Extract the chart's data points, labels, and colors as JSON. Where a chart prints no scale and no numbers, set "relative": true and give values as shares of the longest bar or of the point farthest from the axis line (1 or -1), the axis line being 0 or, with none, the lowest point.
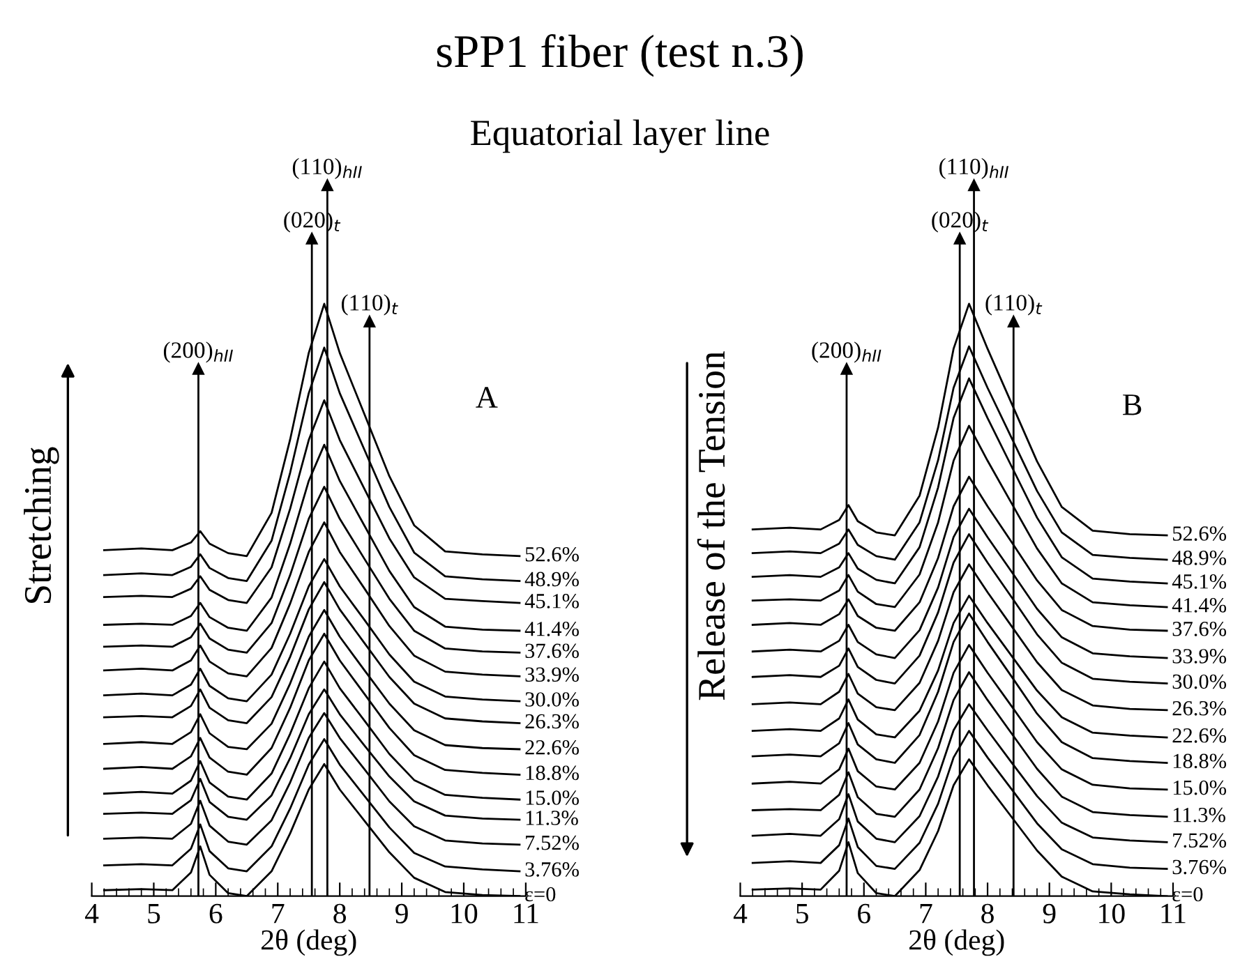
{
  "chart_data": [
    {
      "type": "line",
      "title": "sPP1 fiber (test n.3)",
      "subtitle": "Equatorial layer line",
      "xlabel": "2θ (deg)",
      "ylabel": "Stretching",
      "relative": true,
      "xlim": [
        4,
        11
      ],
      "xticks": [
        4,
        5,
        6,
        7,
        8,
        9,
        10,
        11
      ],
      "tick_labels": "x",
      "grid": false,
      "legend": false,
      "annotations": [
        "A"
      ],
      "x": [
        4.2,
        4.8,
        5.3,
        5.6,
        5.75,
        5.9,
        6.2,
        6.5,
        6.9,
        7.2,
        7.5,
        7.75,
        8.0,
        8.4,
        8.8,
        9.2,
        9.7,
        10.3,
        10.9
      ],
      "ref_lines": [
        {
          "axis": "x",
          "value": 5.72,
          "label": "(200)$_{hII}$"
        },
        {
          "axis": "x",
          "value": 7.55,
          "label": "(020)$_{t}$"
        },
        {
          "axis": "x",
          "value": 7.8,
          "label": "(110)$_{hII}$"
        },
        {
          "axis": "x",
          "value": 8.48,
          "label": "(110)$_{t}$"
        }
      ],
      "series": [
        {
          "name": "ε=0",
          "color": "#000000",
          "values": [
            0.01,
            0.012,
            0.01,
            0.04,
            0.084,
            0.036,
            0.005,
            0,
            0.042,
            0.106,
            0.18,
            0.223,
            0.18,
            0.127,
            0.074,
            0.031,
            0.007,
            0.002,
            0
          ]
        },
        {
          "name": "3.76%",
          "color": "#000000",
          "values": [
            0.052,
            0.054,
            0.052,
            0.08,
            0.121,
            0.076,
            0.047,
            0.042,
            0.084,
            0.148,
            0.222,
            0.265,
            0.222,
            0.169,
            0.116,
            0.073,
            0.05,
            0.045,
            0.042
          ]
        },
        {
          "name": "7.52%",
          "color": "#000000",
          "values": [
            0.097,
            0.099,
            0.097,
            0.122,
            0.161,
            0.119,
            0.092,
            0.087,
            0.128,
            0.192,
            0.267,
            0.309,
            0.267,
            0.214,
            0.16,
            0.118,
            0.094,
            0.089,
            0.087
          ]
        },
        {
          "name": "11.3%",
          "color": "#000000",
          "values": [
            0.139,
            0.141,
            0.139,
            0.162,
            0.198,
            0.159,
            0.134,
            0.129,
            0.17,
            0.233,
            0.307,
            0.349,
            0.307,
            0.254,
            0.202,
            0.16,
            0.136,
            0.131,
            0.129
          ]
        },
        {
          "name": "15.0%",
          "color": "#000000",
          "values": [
            0.173,
            0.176,
            0.173,
            0.195,
            0.228,
            0.192,
            0.168,
            0.163,
            0.207,
            0.274,
            0.351,
            0.396,
            0.351,
            0.296,
            0.24,
            0.196,
            0.171,
            0.166,
            0.163
          ]
        },
        {
          "name": "18.8%",
          "color": "#000000",
          "values": [
            0.215,
            0.218,
            0.215,
            0.236,
            0.267,
            0.234,
            0.21,
            0.205,
            0.25,
            0.318,
            0.398,
            0.443,
            0.398,
            0.341,
            0.284,
            0.238,
            0.213,
            0.208,
            0.205
          ]
        },
        {
          "name": "22.6%",
          "color": "#000000",
          "values": [
            0.257,
            0.26,
            0.257,
            0.277,
            0.307,
            0.275,
            0.252,
            0.248,
            0.291,
            0.359,
            0.438,
            0.483,
            0.438,
            0.381,
            0.325,
            0.28,
            0.255,
            0.25,
            0.248
          ]
        },
        {
          "name": "26.3%",
          "color": "#000000",
          "values": [
            0.302,
            0.304,
            0.302,
            0.321,
            0.349,
            0.318,
            0.297,
            0.292,
            0.336,
            0.404,
            0.484,
            0.53,
            0.484,
            0.427,
            0.37,
            0.325,
            0.3,
            0.295,
            0.292
          ]
        },
        {
          "name": "30.0%",
          "color": "#000000",
          "values": [
            0.339,
            0.342,
            0.339,
            0.357,
            0.384,
            0.355,
            0.334,
            0.329,
            0.374,
            0.443,
            0.523,
            0.569,
            0.523,
            0.466,
            0.408,
            0.362,
            0.337,
            0.332,
            0.329
          ]
        },
        {
          "name": "33.9%",
          "color": "#000000",
          "values": [
            0.381,
            0.384,
            0.381,
            0.398,
            0.423,
            0.396,
            0.376,
            0.371,
            0.419,
            0.494,
            0.581,
            0.631,
            0.581,
            0.519,
            0.456,
            0.406,
            0.379,
            0.374,
            0.371
          ]
        },
        {
          "name": "37.6%",
          "color": "#000000",
          "values": [
            0.421,
            0.423,
            0.421,
            0.437,
            0.46,
            0.435,
            0.416,
            0.411,
            0.461,
            0.542,
            0.637,
            0.691,
            0.637,
            0.569,
            0.502,
            0.448,
            0.418,
            0.413,
            0.411
          ]
        },
        {
          "name": "41.4%",
          "color": "#000000",
          "values": [
            0.458,
            0.46,
            0.458,
            0.473,
            0.495,
            0.471,
            0.453,
            0.448,
            0.504,
            0.595,
            0.701,
            0.762,
            0.701,
            0.625,
            0.549,
            0.488,
            0.455,
            0.45,
            0.448
          ]
        },
        {
          "name": "45.1%",
          "color": "#000000",
          "values": [
            0.505,
            0.507,
            0.505,
            0.519,
            0.54,
            0.517,
            0.5,
            0.495,
            0.555,
            0.654,
            0.77,
            0.837,
            0.77,
            0.687,
            0.604,
            0.538,
            0.502,
            0.498,
            0.495
          ]
        },
        {
          "name": "48.9%",
          "color": "#000000",
          "values": [
            0.542,
            0.545,
            0.542,
            0.556,
            0.577,
            0.554,
            0.537,
            0.532,
            0.6,
            0.715,
            0.849,
            0.926,
            0.849,
            0.753,
            0.657,
            0.58,
            0.54,
            0.535,
            0.532
          ]
        },
        {
          "name": "52.6%",
          "color": "#000000",
          "values": [
            0.584,
            0.587,
            0.584,
            0.597,
            0.616,
            0.595,
            0.579,
            0.574,
            0.647,
            0.771,
            0.917,
            1,
            0.917,
            0.813,
            0.709,
            0.626,
            0.582,
            0.577,
            0.574
          ]
        }
      ]
    },
    {
      "type": "line",
      "xlabel": "2θ (deg)",
      "ylabel": "Release of the Tension",
      "relative": true,
      "xlim": [
        4,
        11
      ],
      "xticks": [
        4,
        5,
        6,
        7,
        8,
        9,
        10,
        11
      ],
      "tick_labels": "x",
      "grid": false,
      "legend": false,
      "annotations": [
        "B"
      ],
      "x": [
        4.2,
        4.8,
        5.3,
        5.6,
        5.75,
        5.9,
        6.2,
        6.5,
        6.9,
        7.2,
        7.45,
        7.7,
        8.0,
        8.4,
        8.8,
        9.2,
        9.7,
        10.3,
        10.9
      ],
      "ref_lines": [
        {
          "axis": "x",
          "value": 5.72,
          "label": "(200)$_{hII}$"
        },
        {
          "axis": "x",
          "value": 7.55,
          "label": "(020)$_{t}$"
        },
        {
          "axis": "x",
          "value": 7.78,
          "label": "(110)$_{hII}$"
        },
        {
          "axis": "x",
          "value": 8.42,
          "label": "(110)$_{t}$"
        }
      ],
      "series": [
        {
          "name": "ε=0",
          "color": "#000000",
          "values": [
            0.011,
            0.013,
            0.011,
            0.043,
            0.091,
            0.039,
            0.005,
            0,
            0.044,
            0.11,
            0.187,
            0.231,
            0.187,
            0.132,
            0.077,
            0.033,
            0.008,
            0.003,
            0
          ]
        },
        {
          "name": "3.76%",
          "color": "#000000",
          "values": [
            0.056,
            0.059,
            0.056,
            0.086,
            0.131,
            0.083,
            0.051,
            0.046,
            0.09,
            0.156,
            0.234,
            0.279,
            0.234,
            0.179,
            0.123,
            0.079,
            0.054,
            0.048,
            0.046
          ]
        },
        {
          "name": "7.52%",
          "color": "#000000",
          "values": [
            0.102,
            0.105,
            0.102,
            0.13,
            0.172,
            0.126,
            0.097,
            0.091,
            0.135,
            0.202,
            0.28,
            0.324,
            0.28,
            0.224,
            0.169,
            0.124,
            0.099,
            0.094,
            0.091
          ]
        },
        {
          "name": "11.3%",
          "color": "#000000",
          "values": [
            0.145,
            0.147,
            0.145,
            0.171,
            0.209,
            0.167,
            0.139,
            0.134,
            0.18,
            0.25,
            0.331,
            0.378,
            0.331,
            0.273,
            0.215,
            0.168,
            0.142,
            0.137,
            0.134
          ]
        },
        {
          "name": "15.0%",
          "color": "#000000",
          "values": [
            0.19,
            0.193,
            0.19,
            0.214,
            0.249,
            0.211,
            0.185,
            0.18,
            0.225,
            0.295,
            0.377,
            0.424,
            0.377,
            0.319,
            0.26,
            0.214,
            0.188,
            0.182,
            0.18
          ]
        },
        {
          "name": "18.8%",
          "color": "#000000",
          "values": [
            0.236,
            0.239,
            0.236,
            0.258,
            0.292,
            0.256,
            0.231,
            0.225,
            0.272,
            0.345,
            0.429,
            0.477,
            0.429,
            0.369,
            0.308,
            0.26,
            0.233,
            0.228,
            0.225
          ]
        },
        {
          "name": "22.6%",
          "color": "#000000",
          "values": [
            0.279,
            0.282,
            0.279,
            0.3,
            0.332,
            0.298,
            0.273,
            0.268,
            0.313,
            0.381,
            0.461,
            0.507,
            0.461,
            0.404,
            0.347,
            0.302,
            0.276,
            0.271,
            0.268
          ]
        },
        {
          "name": "26.3%",
          "color": "#000000",
          "values": [
            0.324,
            0.327,
            0.324,
            0.345,
            0.375,
            0.342,
            0.319,
            0.314,
            0.36,
            0.431,
            0.513,
            0.56,
            0.513,
            0.454,
            0.395,
            0.348,
            0.322,
            0.316,
            0.314
          ]
        },
        {
          "name": "30.0%",
          "color": "#000000",
          "values": [
            0.37,
            0.373,
            0.37,
            0.389,
            0.418,
            0.387,
            0.365,
            0.359,
            0.406,
            0.479,
            0.563,
            0.611,
            0.563,
            0.503,
            0.442,
            0.394,
            0.367,
            0.362,
            0.359
          ]
        },
        {
          "name": "33.9%",
          "color": "#000000",
          "values": [
            0.413,
            0.416,
            0.413,
            0.431,
            0.458,
            0.429,
            0.408,
            0.402,
            0.449,
            0.521,
            0.606,
            0.654,
            0.606,
            0.546,
            0.485,
            0.437,
            0.41,
            0.405,
            0.402
          ]
        },
        {
          "name": "37.6%",
          "color": "#000000",
          "values": [
            0.458,
            0.461,
            0.458,
            0.476,
            0.501,
            0.473,
            0.453,
            0.448,
            0.496,
            0.571,
            0.658,
            0.708,
            0.658,
            0.596,
            0.533,
            0.483,
            0.456,
            0.45,
            0.448
          ]
        },
        {
          "name": "41.4%",
          "color": "#000000",
          "values": [
            0.499,
            0.501,
            0.499,
            0.516,
            0.542,
            0.514,
            0.493,
            0.488,
            0.543,
            0.631,
            0.735,
            0.794,
            0.735,
            0.661,
            0.587,
            0.528,
            0.496,
            0.491,
            0.488
          ]
        },
        {
          "name": "45.1%",
          "color": "#000000",
          "values": [
            0.539,
            0.542,
            0.539,
            0.555,
            0.579,
            0.553,
            0.534,
            0.528,
            0.589,
            0.69,
            0.807,
            0.874,
            0.807,
            0.723,
            0.639,
            0.572,
            0.536,
            0.531,
            0.528
          ]
        },
        {
          "name": "48.9%",
          "color": "#000000",
          "values": [
            0.579,
            0.582,
            0.579,
            0.595,
            0.619,
            0.593,
            0.574,
            0.568,
            0.631,
            0.736,
            0.858,
            0.928,
            0.858,
            0.771,
            0.684,
            0.614,
            0.576,
            0.571,
            0.568
          ]
        },
        {
          "name": "52.6%",
          "color": "#000000",
          "values": [
            0.619,
            0.622,
            0.619,
            0.635,
            0.66,
            0.633,
            0.614,
            0.609,
            0.676,
            0.791,
            0.924,
            1,
            0.924,
            0.829,
            0.734,
            0.657,
            0.617,
            0.611,
            0.609
          ]
        }
      ]
    }
  ]
}
